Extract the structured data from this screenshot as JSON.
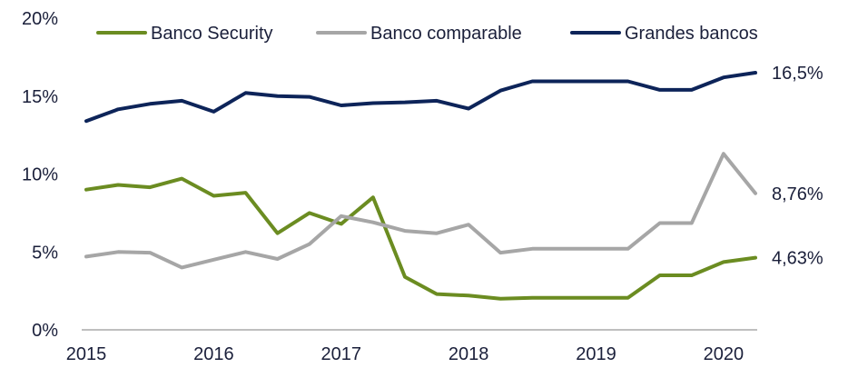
{
  "chart_data": {
    "type": "line",
    "title": "",
    "xlabel": "",
    "ylabel": "",
    "xlim": [
      2015,
      2020.25
    ],
    "ylim": [
      0,
      20
    ],
    "x_ticks": [
      "2015",
      "2016",
      "2017",
      "2018",
      "2019",
      "2020"
    ],
    "y_ticks": [
      "0%",
      "5%",
      "10%",
      "15%",
      "20%"
    ],
    "grid": false,
    "legend_position": "top",
    "x": [
      2015.0,
      2015.25,
      2015.5,
      2015.75,
      2016.0,
      2016.25,
      2016.5,
      2016.75,
      2017.0,
      2017.25,
      2017.5,
      2017.75,
      2018.0,
      2018.25,
      2018.5,
      2018.75,
      2019.0,
      2019.25,
      2019.5,
      2019.75,
      2020.0,
      2020.25
    ],
    "series": [
      {
        "name": "Banco Security",
        "color": "#6b8c21",
        "values": [
          9.0,
          9.3,
          9.15,
          9.7,
          8.6,
          8.8,
          6.2,
          7.5,
          6.8,
          8.5,
          3.4,
          2.3,
          2.2,
          2.0,
          2.05,
          2.05,
          2.05,
          2.05,
          3.5,
          3.5,
          4.35,
          4.63
        ],
        "end_label": "4,63%"
      },
      {
        "name": "Banco comparable",
        "color": "#a6a6a6",
        "values": [
          4.7,
          5.0,
          4.95,
          4.0,
          4.5,
          5.0,
          4.55,
          5.5,
          7.3,
          6.9,
          6.35,
          6.2,
          6.75,
          4.95,
          5.2,
          5.2,
          5.2,
          5.2,
          6.85,
          6.85,
          11.3,
          8.76
        ],
        "end_label": "8,76%"
      },
      {
        "name": "Grandes bancos",
        "color": "#0d2459",
        "values": [
          13.4,
          14.15,
          14.5,
          14.7,
          14.0,
          15.2,
          15.0,
          14.95,
          14.4,
          14.55,
          14.6,
          14.7,
          14.2,
          15.35,
          15.95,
          15.95,
          15.95,
          15.95,
          15.4,
          15.4,
          16.2,
          16.5
        ],
        "end_label": "16,5%"
      }
    ]
  }
}
